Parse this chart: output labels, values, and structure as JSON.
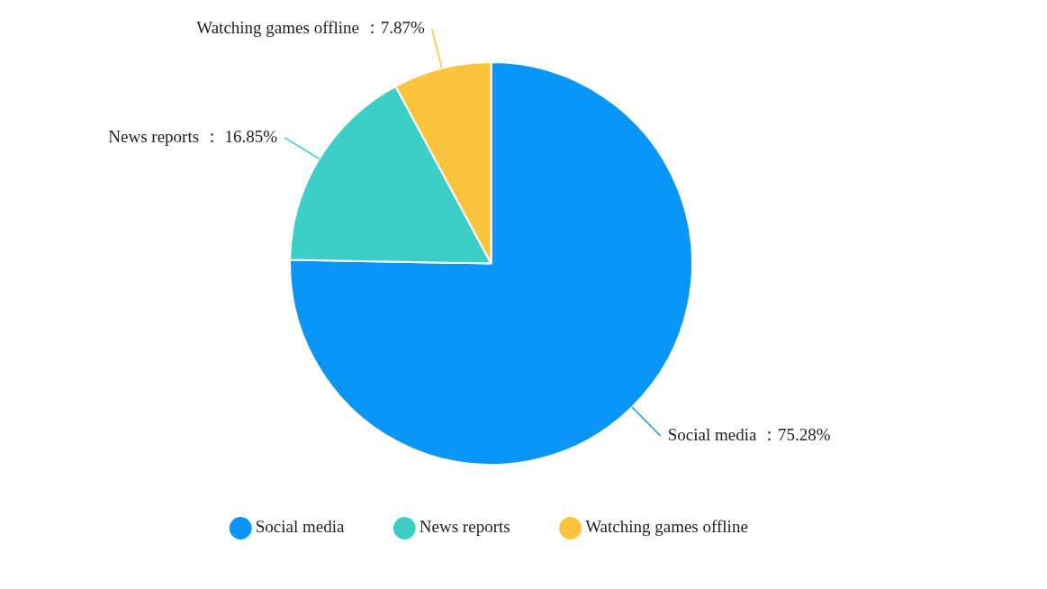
{
  "chart_data": {
    "type": "pie",
    "categories": [
      "Social media",
      "News reports",
      "Watching games offline"
    ],
    "values": [
      75.28,
      16.85,
      7.87
    ],
    "value_labels": [
      "：75.28%",
      "： 16.85%",
      "：7.87%"
    ],
    "colors": [
      "#0a96f8",
      "#3bcfc8",
      "#fbc43c"
    ],
    "legend": "bottom"
  }
}
